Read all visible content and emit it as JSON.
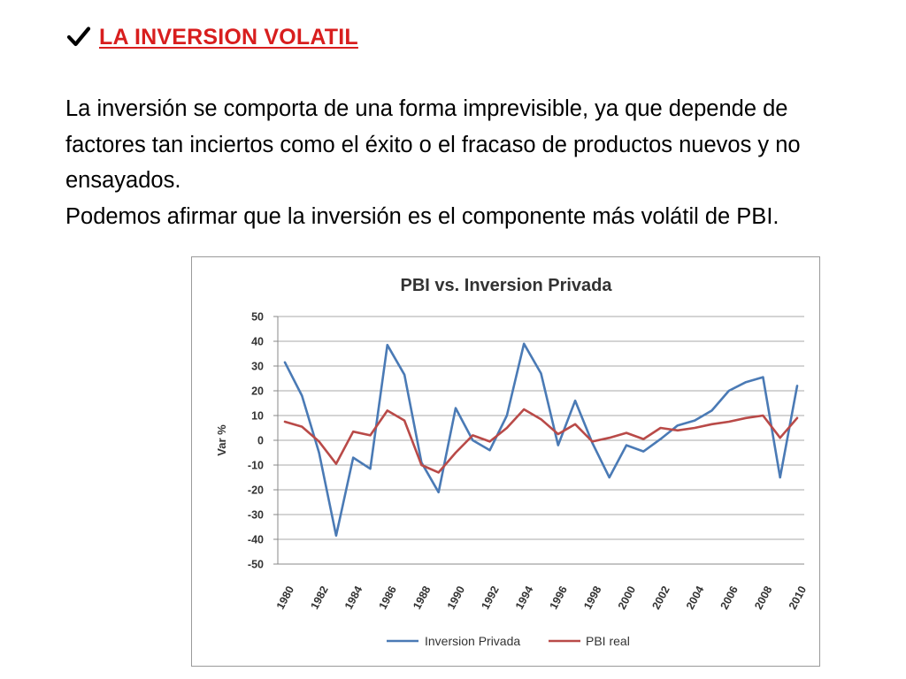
{
  "heading": {
    "icon": "check-icon",
    "text": "LA INVERSION VOLATIL",
    "color": "#d81e1e"
  },
  "paragraphs": [
    "La inversión se comporta de una forma imprevisible, ya que depende de factores tan inciertos como el éxito o el fracaso de productos nuevos y no ensayados.",
    "Podemos afirmar que la inversión es el componente más volátil de PBI."
  ],
  "chart_data": {
    "type": "line",
    "title": "PBI vs. Inversion Privada",
    "xlabel": "",
    "ylabel": "Var %",
    "ylim": [
      -50,
      50
    ],
    "yticks": [
      50,
      40,
      30,
      20,
      10,
      0,
      -10,
      -20,
      -30,
      -40,
      -50
    ],
    "grid": true,
    "legend_position": "bottom",
    "x": [
      1980,
      1981,
      1982,
      1983,
      1984,
      1985,
      1986,
      1987,
      1988,
      1989,
      1990,
      1991,
      1992,
      1993,
      1994,
      1995,
      1996,
      1997,
      1998,
      1999,
      2000,
      2001,
      2002,
      2003,
      2004,
      2005,
      2006,
      2007,
      2008,
      2009,
      2010
    ],
    "xtick_labels": [
      "1980",
      "1982",
      "1984",
      "1986",
      "1988",
      "1990",
      "1992",
      "1994",
      "1996",
      "1998",
      "2000",
      "2002",
      "2004",
      "2006",
      "2008",
      "2010"
    ],
    "series": [
      {
        "name": "Inversion Privada",
        "color": "#4a7ab5",
        "values": [
          31.5,
          18,
          -5,
          -38.5,
          -7,
          -11.5,
          38.5,
          26.5,
          -9,
          -21,
          13,
          0,
          -4,
          10,
          39,
          27,
          -2,
          16,
          -1,
          -15,
          -2,
          -4.5,
          0.5,
          6,
          8,
          12,
          20,
          23.5,
          25.5,
          -15,
          22
        ]
      },
      {
        "name": "PBI real",
        "color": "#b94a48",
        "values": [
          7.5,
          5.5,
          -0.5,
          -9.5,
          3.5,
          2,
          12,
          8,
          -10,
          -13,
          -5,
          2,
          -0.5,
          5,
          12.5,
          8.5,
          2.5,
          6.5,
          -0.5,
          1,
          3,
          0.5,
          5,
          4,
          5,
          6.5,
          7.5,
          9,
          10,
          1,
          9
        ]
      }
    ]
  }
}
